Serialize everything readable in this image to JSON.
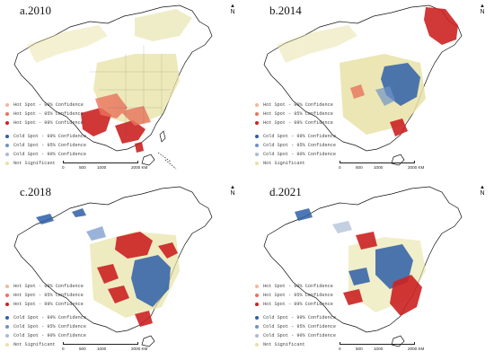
{
  "panels": [
    {
      "title": "a.2010",
      "north": "N"
    },
    {
      "title": "b.2014",
      "north": "N"
    },
    {
      "title": "c.2018",
      "north": "N"
    },
    {
      "title": "d.2021",
      "north": "N"
    }
  ],
  "legend": {
    "hot90": "Hot Spot - 90% Confidence",
    "hot95": "Hot Spot - 95% Confidence",
    "hot99": "Hot Spot - 99% Confidence",
    "cold99": "Cold Spot - 99% Confidence",
    "cold95": "Cold Spot - 95% Confidence",
    "cold90": "Cold Spot - 90% Confidence",
    "notsig": "Not Significant"
  },
  "scale": {
    "t0": "0",
    "t1": "500",
    "t2": "1000",
    "t3": "2000 KM"
  },
  "colors": {
    "hot90": "#f4b89b",
    "hot95": "#e8735c",
    "hot99": "#cc2222",
    "cold99": "#2f5fa8",
    "cold95": "#6f93c9",
    "cold90": "#a9bcd6",
    "notsig": "#e7e2a6",
    "border": "#111111"
  },
  "distributions": {
    "a.2010": {
      "hot": "southwest and south (Yunnan, Guangxi, Guangdong, Hainan)",
      "cold": "none"
    },
    "b.2014": {
      "hot": "northeast (Heilongjiang, Jilin) and south coast",
      "cold": "east (Shandong, Jiangsu, Anhui, Henan)"
    },
    "c.2018": {
      "hot": "north China, central and southwest",
      "cold": "east and central-east, scattered northwest"
    },
    "d.2021": {
      "hot": "southeast coast (Fujian, Guangdong), north and central",
      "cold": "central belt and northwest"
    }
  }
}
